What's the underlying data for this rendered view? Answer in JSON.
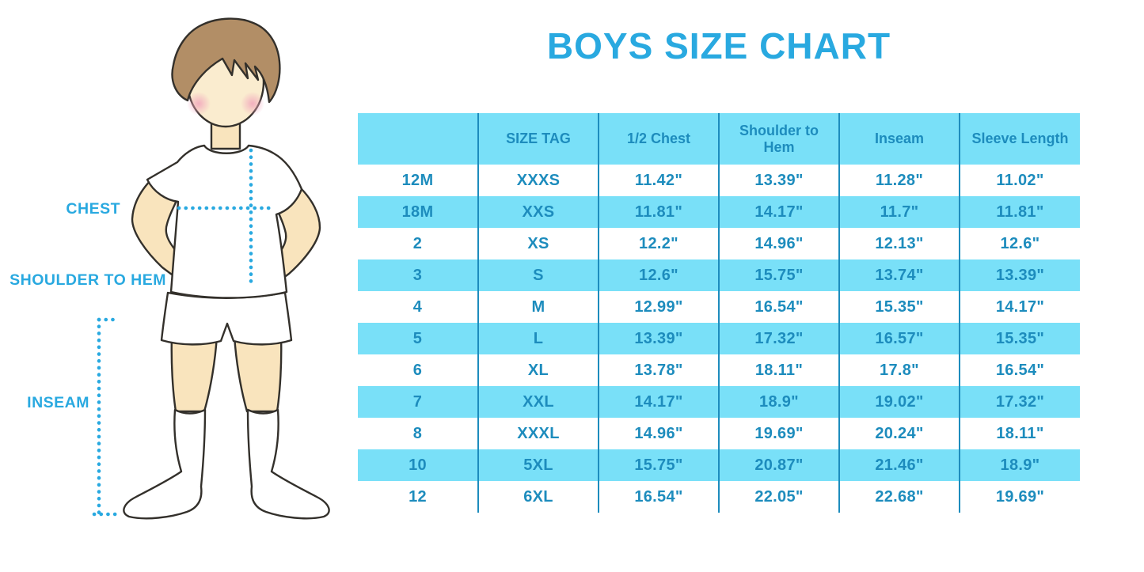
{
  "title": "BOYS SIZE CHART",
  "figure": {
    "labels": {
      "chest": "CHEST",
      "shoulder_to_hem": "SHOULDER TO HEM",
      "inseam": "INSEAM"
    }
  },
  "chart_data": {
    "type": "table",
    "title": "BOYS SIZE CHART",
    "columns": [
      "",
      "SIZE TAG",
      "1/2 Chest",
      "Shoulder to Hem",
      "Inseam",
      "Sleeve Length"
    ],
    "rows": [
      [
        "12M",
        "XXXS",
        "11.42\"",
        "13.39\"",
        "11.28\"",
        "11.02\""
      ],
      [
        "18M",
        "XXS",
        "11.81\"",
        "14.17\"",
        "11.7\"",
        "11.81\""
      ],
      [
        "2",
        "XS",
        "12.2\"",
        "14.96\"",
        "12.13\"",
        "12.6\""
      ],
      [
        "3",
        "S",
        "12.6\"",
        "15.75\"",
        "13.74\"",
        "13.39\""
      ],
      [
        "4",
        "M",
        "12.99\"",
        "16.54\"",
        "15.35\"",
        "14.17\""
      ],
      [
        "5",
        "L",
        "13.39\"",
        "17.32\"",
        "16.57\"",
        "15.35\""
      ],
      [
        "6",
        "XL",
        "13.78\"",
        "18.11\"",
        "17.8\"",
        "16.54\""
      ],
      [
        "7",
        "XXL",
        "14.17\"",
        "18.9\"",
        "19.02\"",
        "17.32\""
      ],
      [
        "8",
        "XXXL",
        "14.96\"",
        "19.69\"",
        "20.24\"",
        "18.11\""
      ],
      [
        "10",
        "5XL",
        "15.75\"",
        "20.87\"",
        "21.46\"",
        "18.9\""
      ],
      [
        "12",
        "6XL",
        "16.54\"",
        "22.05\"",
        "22.68\"",
        "19.69\""
      ]
    ],
    "annotations": [
      "CHEST",
      "SHOULDER TO HEM",
      "INSEAM"
    ],
    "row_striping": "white / cyan alternating, header cyan"
  },
  "colors": {
    "accent_blue": "#29a9e0",
    "table_text_blue": "#1d8cbd",
    "grid_line_blue": "#1d8cbd",
    "row_cyan": "#79e0f8",
    "skin": "#f9e4bd",
    "hair_brown": "#b28e66",
    "cheek_pink": "#f1a4bb",
    "outline": "#33302b",
    "background": "#ffffff"
  }
}
